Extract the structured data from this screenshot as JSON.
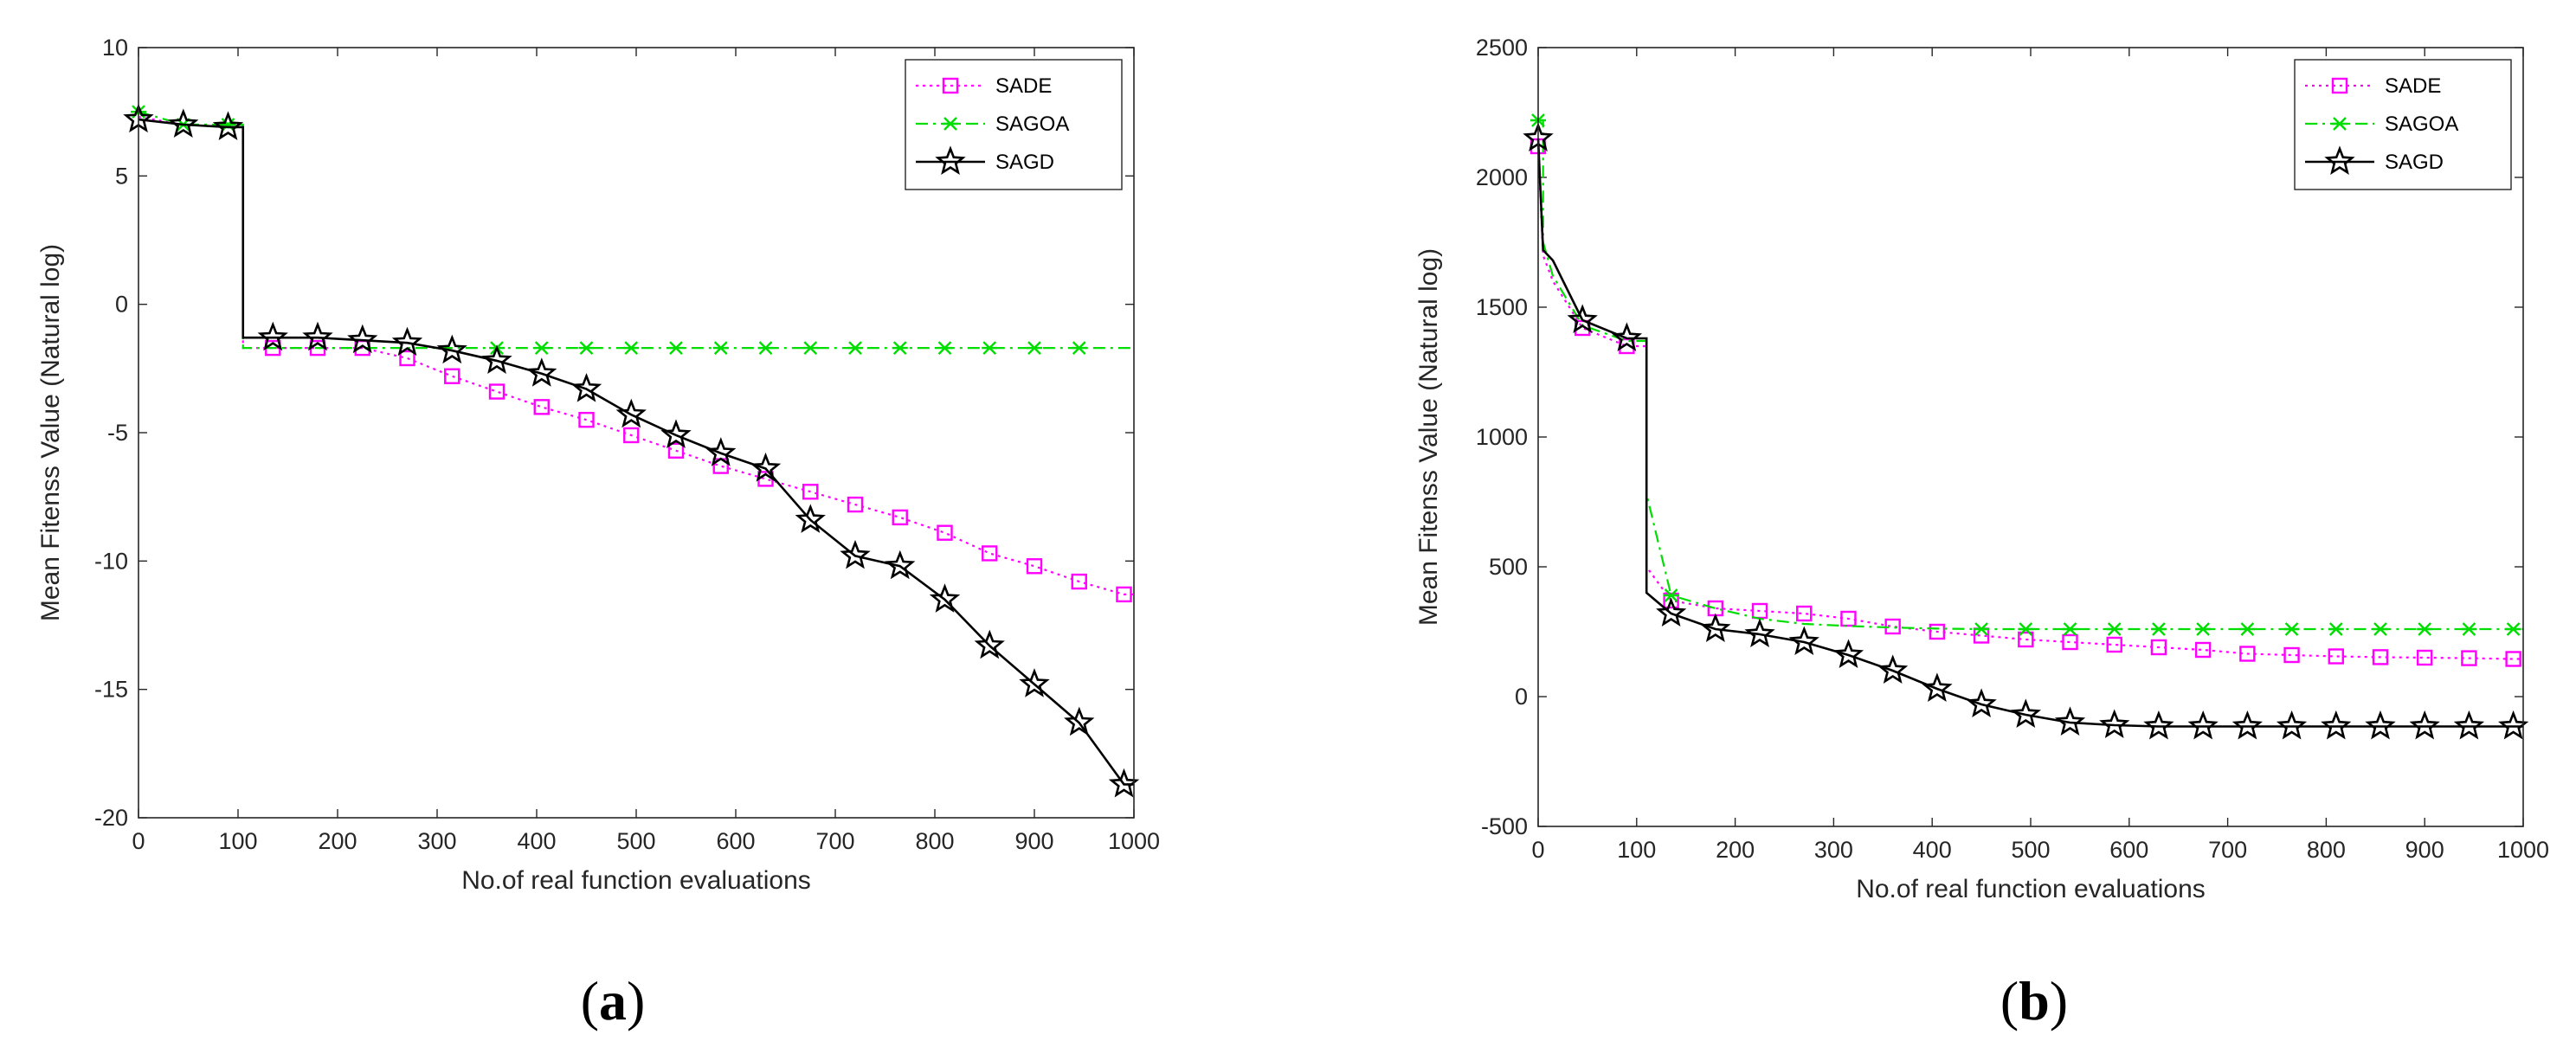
{
  "chart_data": [
    {
      "type": "line",
      "panel_label_prefix": "(",
      "panel_label_letter": "a",
      "panel_label_suffix": ")",
      "xlabel": "No.of real function evaluations",
      "ylabel": "Mean Fitenss Value (Natural log)",
      "xlim": [
        0,
        1000
      ],
      "ylim": [
        -20,
        10
      ],
      "xticks": [
        "0",
        "100",
        "200",
        "300",
        "400",
        "500",
        "600",
        "700",
        "800",
        "900",
        "1000"
      ],
      "yticks": [
        "-20",
        "-15",
        "-10",
        "-5",
        "0",
        "5",
        "10"
      ],
      "legend_position": "top-right",
      "series": [
        {
          "name": "SADE",
          "color": "#ff00ff",
          "dash": "3,5",
          "marker": "square",
          "x": [
            0,
            45,
            90,
            105,
            135,
            180,
            225,
            270,
            315,
            360,
            405,
            450,
            495,
            540,
            585,
            630,
            675,
            720,
            765,
            810,
            855,
            900,
            945,
            990,
            1000
          ],
          "y": [
            7.3,
            7.0,
            6.9,
            -1.7,
            -1.7,
            -1.7,
            -1.7,
            -2.1,
            -2.8,
            -3.4,
            -4.0,
            -4.5,
            -5.1,
            -5.7,
            -6.3,
            -6.8,
            -7.3,
            -7.8,
            -8.3,
            -8.9,
            -9.7,
            -10.2,
            -10.8,
            -11.3,
            -11.3
          ],
          "marker_x": [
            135,
            180,
            225,
            270,
            315,
            360,
            405,
            450,
            495,
            540,
            585,
            630,
            675,
            720,
            765,
            810,
            855,
            900,
            945,
            990
          ]
        },
        {
          "name": "SAGOA",
          "color": "#00dd00",
          "dash": "14,6,3,6",
          "marker": "x",
          "x": [
            0,
            45,
            90,
            105,
            135,
            180,
            225,
            270,
            315,
            360,
            405,
            450,
            495,
            540,
            585,
            630,
            675,
            720,
            765,
            810,
            855,
            900,
            945,
            990,
            1000
          ],
          "y": [
            7.5,
            7.0,
            7.0,
            -1.7,
            -1.7,
            -1.7,
            -1.7,
            -1.7,
            -1.7,
            -1.7,
            -1.7,
            -1.7,
            -1.7,
            -1.7,
            -1.7,
            -1.7,
            -1.7,
            -1.7,
            -1.7,
            -1.7,
            -1.7,
            -1.7,
            -1.7,
            -1.7,
            -1.7
          ],
          "marker_x": [
            0,
            45,
            90,
            360,
            405,
            450,
            495,
            540,
            585,
            630,
            675,
            720,
            765,
            810,
            855,
            900,
            945
          ]
        },
        {
          "name": "SAGD",
          "color": "#000000",
          "dash": "",
          "marker": "star",
          "x": [
            0,
            45,
            90,
            105,
            135,
            180,
            225,
            270,
            315,
            360,
            405,
            450,
            495,
            540,
            585,
            630,
            675,
            720,
            765,
            810,
            855,
            900,
            945,
            990,
            1000
          ],
          "y": [
            7.2,
            7.0,
            6.9,
            -1.3,
            -1.3,
            -1.3,
            -1.4,
            -1.5,
            -1.8,
            -2.2,
            -2.7,
            -3.3,
            -4.3,
            -5.1,
            -5.8,
            -6.4,
            -8.4,
            -9.8,
            -10.2,
            -11.5,
            -13.3,
            -14.8,
            -16.3,
            -18.7,
            -18.7
          ],
          "marker_x": [
            0,
            45,
            90,
            135,
            180,
            225,
            270,
            315,
            360,
            405,
            450,
            495,
            540,
            585,
            630,
            675,
            720,
            765,
            810,
            855,
            900,
            945,
            990
          ]
        }
      ]
    },
    {
      "type": "line",
      "panel_label_prefix": "(",
      "panel_label_letter": "b",
      "panel_label_suffix": ")",
      "xlabel": "No.of real function evaluations",
      "ylabel": "Mean Fitenss Value (Natural log)",
      "xlim": [
        0,
        1000
      ],
      "ylim": [
        -500,
        2500
      ],
      "xticks": [
        "0",
        "100",
        "200",
        "300",
        "400",
        "500",
        "600",
        "700",
        "800",
        "900",
        "1000"
      ],
      "yticks": [
        "-500",
        "0",
        "500",
        "1000",
        "1500",
        "2000",
        "2500"
      ],
      "legend_position": "top-right",
      "series": [
        {
          "name": "SADE",
          "color": "#ff00ff",
          "dash": "3,5",
          "marker": "square",
          "x": [
            0,
            5,
            15,
            45,
            90,
            105,
            110,
            135,
            180,
            225,
            270,
            315,
            360,
            405,
            450,
            495,
            540,
            585,
            630,
            675,
            720,
            765,
            810,
            855,
            900,
            945,
            990,
            1000
          ],
          "y": [
            2120,
            1700,
            1600,
            1420,
            1350,
            1350,
            500,
            370,
            340,
            330,
            320,
            300,
            270,
            250,
            235,
            220,
            210,
            200,
            190,
            180,
            165,
            160,
            155,
            152,
            150,
            148,
            145,
            145
          ],
          "marker_x": [
            0,
            45,
            90,
            135,
            180,
            225,
            270,
            315,
            360,
            405,
            450,
            495,
            540,
            585,
            630,
            675,
            720,
            765,
            810,
            855,
            900,
            945,
            990
          ]
        },
        {
          "name": "SAGOA",
          "color": "#00dd00",
          "dash": "14,6,3,6",
          "marker": "x",
          "x": [
            0,
            5,
            15,
            45,
            90,
            105,
            110,
            135,
            180,
            225,
            270,
            315,
            360,
            405,
            450,
            495,
            540,
            585,
            630,
            675,
            720,
            765,
            810,
            855,
            900,
            945,
            990,
            1000
          ],
          "y": [
            2220,
            1750,
            1620,
            1430,
            1370,
            1370,
            780,
            390,
            340,
            300,
            280,
            272,
            266,
            262,
            260,
            260,
            260,
            260,
            260,
            260,
            260,
            260,
            260,
            260,
            260,
            260,
            260,
            260
          ],
          "marker_x": [
            0,
            135,
            450,
            495,
            540,
            585,
            630,
            675,
            720,
            765,
            810,
            855,
            900,
            945,
            990
          ]
        },
        {
          "name": "SAGD",
          "color": "#000000",
          "dash": "",
          "marker": "star",
          "x": [
            0,
            5,
            15,
            45,
            90,
            105,
            110,
            135,
            180,
            225,
            270,
            315,
            360,
            405,
            450,
            495,
            540,
            585,
            630,
            675,
            720,
            765,
            810,
            855,
            900,
            945,
            990,
            1000
          ],
          "y": [
            2150,
            1720,
            1680,
            1450,
            1380,
            1380,
            400,
            320,
            260,
            240,
            210,
            160,
            100,
            30,
            -30,
            -70,
            -100,
            -110,
            -115,
            -115,
            -115,
            -115,
            -115,
            -115,
            -115,
            -115,
            -115,
            -115
          ],
          "marker_x": [
            0,
            45,
            90,
            135,
            180,
            225,
            270,
            315,
            360,
            405,
            450,
            495,
            540,
            585,
            630,
            675,
            720,
            765,
            810,
            855,
            900,
            945,
            990
          ]
        }
      ]
    }
  ]
}
